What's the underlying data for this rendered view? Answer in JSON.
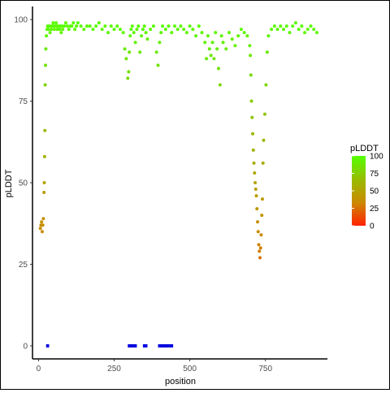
{
  "chart_data": {
    "type": "scatter",
    "title": "",
    "xlabel": "position",
    "ylabel": "pLDDT",
    "xlim": [
      -20,
      955
    ],
    "ylim": [
      -4,
      104
    ],
    "x_ticks": [
      0,
      250,
      500,
      750
    ],
    "y_ticks": [
      0,
      25,
      50,
      75,
      100
    ],
    "x_tick_labels": [
      "0",
      "250",
      "500",
      "750"
    ],
    "y_tick_labels": [
      "0",
      "25",
      "50",
      "75",
      "100"
    ],
    "grid": false,
    "legend": {
      "title": "pLDDT",
      "position": "right",
      "type": "colorbar",
      "ticks": [
        "100",
        "75",
        "50",
        "25",
        "0"
      ],
      "colors": [
        "#ff2200",
        "#cc8800",
        "#99bb00",
        "#55ff00"
      ]
    },
    "series": [
      {
        "values_x": [
          6,
          8,
          10,
          12,
          14,
          16,
          18,
          19,
          20,
          21,
          22,
          23,
          24,
          26,
          28,
          30,
          32,
          35,
          38,
          40,
          42,
          45,
          48,
          50,
          52,
          55,
          58,
          60,
          62,
          65,
          68,
          70,
          72,
          75,
          78,
          80,
          85,
          90,
          95,
          100,
          105,
          110,
          115,
          120,
          125,
          130,
          140,
          150,
          160,
          170,
          180,
          190,
          200,
          210,
          220,
          230,
          240,
          250,
          260,
          270,
          280,
          285,
          290,
          295,
          298,
          300,
          303,
          306,
          310,
          315,
          320,
          325,
          330,
          335,
          340,
          345,
          350,
          355,
          360,
          370,
          380,
          390,
          395,
          400,
          405,
          410,
          420,
          430,
          440,
          450,
          460,
          470,
          480,
          490,
          500,
          510,
          520,
          530,
          540,
          550,
          555,
          560,
          565,
          570,
          575,
          580,
          585,
          590,
          595,
          600,
          605,
          610,
          620,
          630,
          640,
          650,
          660,
          670,
          680,
          690,
          698,
          700,
          702,
          704,
          706,
          708,
          710,
          712,
          714,
          716,
          718,
          720,
          722,
          724,
          726,
          728,
          730,
          732,
          734,
          736,
          738,
          740,
          742,
          744,
          748,
          752,
          756,
          760,
          770,
          780,
          790,
          800,
          810,
          820,
          830,
          840,
          850,
          860,
          870,
          880,
          890,
          900,
          910,
          920
        ],
        "values_y": [
          36,
          37,
          38,
          35,
          37,
          39,
          47,
          50,
          58,
          66,
          80,
          86,
          91,
          95,
          97,
          98,
          97,
          98,
          96,
          98,
          97,
          98,
          99,
          98,
          97,
          98,
          99,
          98,
          97,
          98,
          98,
          97,
          98,
          96,
          98,
          97,
          98,
          99,
          98,
          97,
          98,
          98,
          99,
          97,
          98,
          99,
          98,
          97,
          98,
          98,
          97,
          98,
          99,
          97,
          98,
          96,
          98,
          97,
          98,
          97,
          96,
          91,
          88,
          82,
          84,
          90,
          95,
          97,
          98,
          96,
          93,
          97,
          98,
          90,
          95,
          97,
          98,
          96,
          94,
          97,
          98,
          90,
          86,
          93,
          96,
          98,
          97,
          98,
          96,
          98,
          97,
          98,
          97,
          96,
          98,
          97,
          95,
          98,
          96,
          93,
          88,
          95,
          91,
          89,
          93,
          88,
          96,
          91,
          85,
          80,
          95,
          93,
          91,
          96,
          94,
          92,
          95,
          97,
          96,
          95,
          92,
          89,
          83,
          75,
          70,
          65,
          60,
          56,
          53,
          50,
          48,
          46,
          42,
          38,
          35,
          31,
          29,
          27,
          30,
          34,
          40,
          45,
          56,
          63,
          71,
          80,
          90,
          95,
          97,
          98,
          97,
          98,
          97,
          98,
          96,
          98,
          99,
          97,
          98,
          96,
          97,
          98,
          97,
          96
        ]
      }
    ],
    "bars_at_zero": [
      {
        "x_start": 25,
        "x_end": 35
      },
      {
        "x_start": 295,
        "x_end": 325
      },
      {
        "x_start": 345,
        "x_end": 360
      },
      {
        "x_start": 395,
        "x_end": 445
      }
    ]
  }
}
